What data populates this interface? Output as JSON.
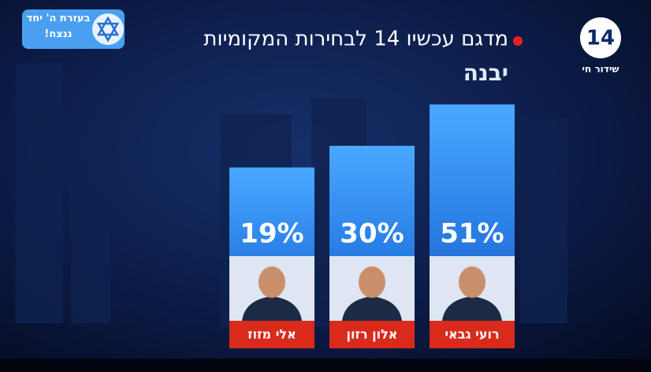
{
  "chart_data": {
    "type": "bar",
    "title": "מדגם עכשיו 14 לבחירות המקומיות",
    "subtitle": "יבנה",
    "categories": [
      "רועי גבאי",
      "אלון רזון",
      "אלי מזוז"
    ],
    "values": [
      51,
      30,
      19
    ],
    "value_labels": [
      "51%",
      "30%",
      "19%"
    ],
    "color": "#2f8ff0"
  },
  "channel": {
    "logo": "14",
    "live": "שידור חי"
  },
  "banner": "בעזרת ה' יחד ננצח!"
}
